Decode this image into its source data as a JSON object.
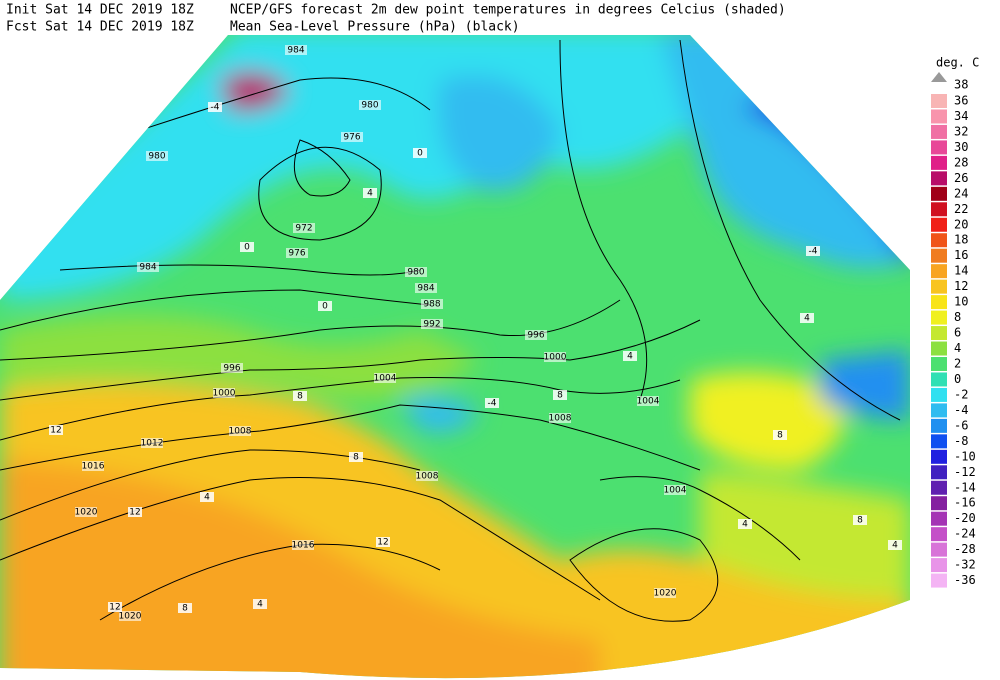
{
  "header": {
    "init": "Init  Sat 14 DEC 2019 18Z",
    "fcst": "Fcst Sat 14 DEC 2019 18Z",
    "title": "NCEP/GFS forecast 2m dew point temperatures in degrees Celcius (shaded)",
    "subtitle": "Mean Sea-Level Pressure (hPa) (black)"
  },
  "legend": {
    "title": "deg. C",
    "top_label": 38,
    "items": [
      {
        "label": 36,
        "color": "#f8b4b4"
      },
      {
        "label": 34,
        "color": "#f894ac"
      },
      {
        "label": 32,
        "color": "#f070a4"
      },
      {
        "label": 30,
        "color": "#e84898"
      },
      {
        "label": 28,
        "color": "#e02088"
      },
      {
        "label": 26,
        "color": "#b80c68"
      },
      {
        "label": 24,
        "color": "#a00018"
      },
      {
        "label": 22,
        "color": "#d01020"
      },
      {
        "label": 20,
        "color": "#f02018"
      },
      {
        "label": 18,
        "color": "#f05418"
      },
      {
        "label": 16,
        "color": "#f07c20"
      },
      {
        "label": 14,
        "color": "#f8a420"
      },
      {
        "label": 12,
        "color": "#f8c420"
      },
      {
        "label": 10,
        "color": "#f8e418"
      },
      {
        "label": 8,
        "color": "#f0f020"
      },
      {
        "label": 6,
        "color": "#c4e830"
      },
      {
        "label": 4,
        "color": "#8ce040"
      },
      {
        "label": 2,
        "color": "#4ce070"
      },
      {
        "label": 0,
        "color": "#30e0b4"
      },
      {
        "label": -2,
        "color": "#30e0f0"
      },
      {
        "label": -4,
        "color": "#30bcf0"
      },
      {
        "label": -6,
        "color": "#2090f0"
      },
      {
        "label": -8,
        "color": "#1050f0"
      },
      {
        "label": -10,
        "color": "#2020e0"
      },
      {
        "label": -12,
        "color": "#4020c0"
      },
      {
        "label": -14,
        "color": "#6020b0"
      },
      {
        "label": -16,
        "color": "#8420a0"
      },
      {
        "label": -20,
        "color": "#a434b4"
      },
      {
        "label": -24,
        "color": "#c450c8"
      },
      {
        "label": -28,
        "color": "#d874d8"
      },
      {
        "label": -32,
        "color": "#e894e8"
      },
      {
        "label": -36,
        "color": "#f4b4f4"
      }
    ]
  },
  "isobar_labels": [
    984,
    980,
    976,
    980,
    972,
    976,
    984,
    980,
    984,
    988,
    992,
    996,
    1000,
    1004,
    996,
    1000,
    1008,
    1012,
    1016,
    1020,
    1016,
    1020,
    1008,
    1004,
    1004,
    1008,
    1020
  ],
  "contour_labels": [
    -4,
    0,
    4,
    0,
    0,
    4,
    8,
    8,
    12,
    12,
    4,
    4,
    8,
    -4,
    -4,
    4,
    8,
    4,
    8,
    12,
    12,
    8,
    4
  ]
}
